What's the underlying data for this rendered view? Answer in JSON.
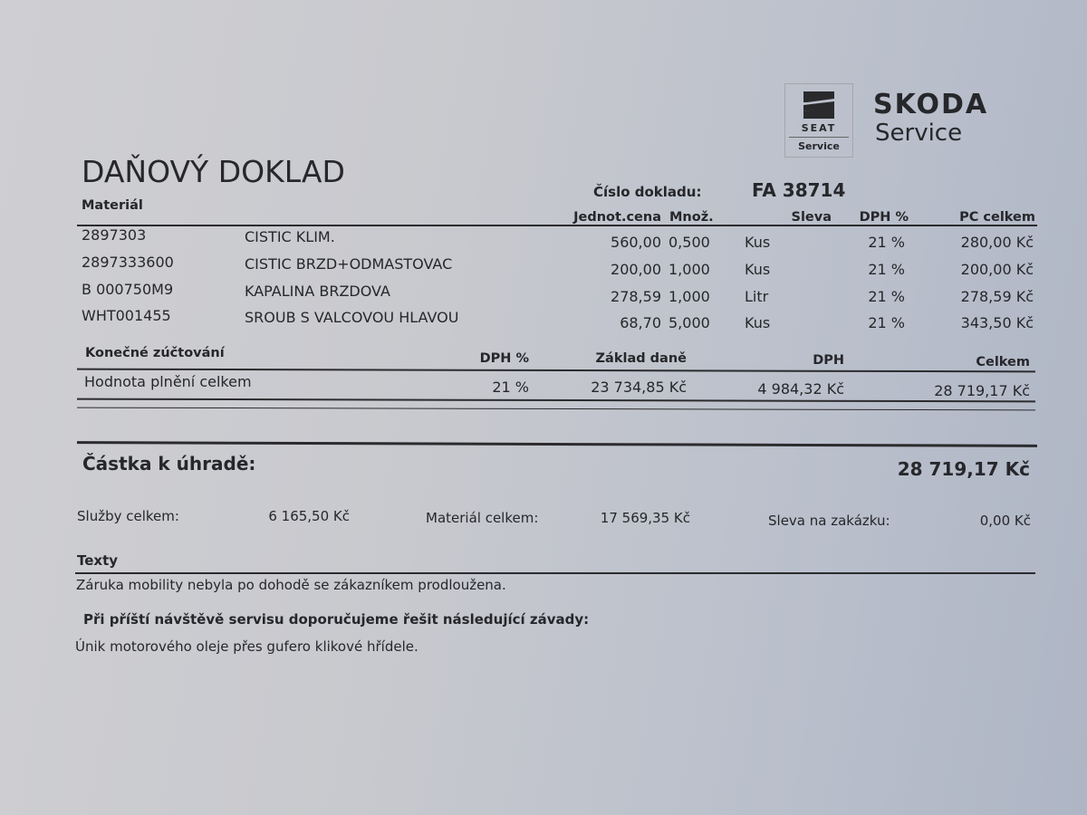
{
  "brand": {
    "seat_logo_text": "SEAT",
    "seat_service": "Service",
    "skoda_name": "SKODA",
    "skoda_service": "Service"
  },
  "document": {
    "title": "DAŇOVÝ DOKLAD",
    "number_label": "Číslo dokladu:",
    "number_value": "FA 38714"
  },
  "items_table": {
    "headers": {
      "material": "Materiál",
      "unit_price": "Jednot.cena",
      "quantity": "Množ.",
      "discount": "Sleva",
      "vat": "DPH %",
      "total": "PC celkem"
    },
    "rows": [
      {
        "code": "2897303",
        "description": "CISTIC KLIM.",
        "unit_price": "560,00",
        "quantity": "0,500",
        "unit": "Kus",
        "vat": "21 %",
        "total": "280,00 Kč"
      },
      {
        "code": "2897333600",
        "description": "CISTIC BRZD+ODMASTOVAC",
        "unit_price": "200,00",
        "quantity": "1,000",
        "unit": "Kus",
        "vat": "21 %",
        "total": "200,00 Kč"
      },
      {
        "code": "B  000750M9",
        "description": "KAPALINA BRZDOVA",
        "unit_price": "278,59",
        "quantity": "1,000",
        "unit": "Litr",
        "vat": "21 %",
        "total": "278,59 Kč"
      },
      {
        "code": "WHT001455",
        "description": "SROUB S VALCOVOU HLAVOU",
        "unit_price": "68,70",
        "quantity": "5,000",
        "unit": "Kus",
        "vat": "21 %",
        "total": "343,50 Kč"
      }
    ]
  },
  "settlement": {
    "headers": {
      "title": "Konečné zúčtování",
      "vat": "DPH %",
      "base": "Základ daně",
      "vat_amount": "DPH",
      "total": "Celkem"
    },
    "row": {
      "label": "Hodnota plnění celkem",
      "vat": "21 %",
      "base": "23 734,85 Kč",
      "vat_amount": "4 984,32 Kč",
      "total": "28 719,17 Kč"
    }
  },
  "payment": {
    "label": "Částka k úhradě:",
    "value": "28 719,17 Kč"
  },
  "summary": {
    "services_label": "Služby celkem:",
    "services_value": "6 165,50 Kč",
    "material_label": "Materiál celkem:",
    "material_value": "17 569,35 Kč",
    "discount_label": "Sleva na zakázku:",
    "discount_value": "0,00 Kč"
  },
  "texts": {
    "heading": "Texty",
    "note": "Záruka mobility nebyla po dohodě se zákazníkem prodloužena.",
    "recommend_heading": "Při příští návštěvě servisu doporučujeme řešit následující závady:",
    "recommend_item": "Únik motorového oleje přes gufero klikové hřídele."
  }
}
